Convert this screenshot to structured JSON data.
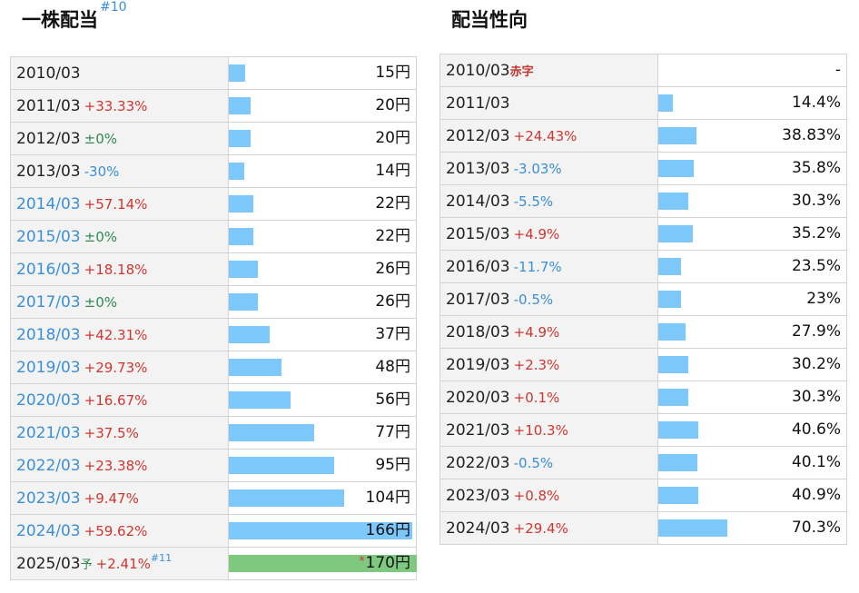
{
  "dividend": {
    "title": "一株配当",
    "title_note": "#10",
    "max_value": 170,
    "rows": [
      {
        "year": "2010/03",
        "change": "",
        "change_type": "",
        "value": 15,
        "value_label": "15円",
        "year_style": "normal"
      },
      {
        "year": "2011/03",
        "change": "+33.33%",
        "change_type": "up",
        "value": 20,
        "value_label": "20円",
        "year_style": "normal"
      },
      {
        "year": "2012/03",
        "change": "±0%",
        "change_type": "flat",
        "value": 20,
        "value_label": "20円",
        "year_style": "normal"
      },
      {
        "year": "2013/03",
        "change": "-30%",
        "change_type": "down",
        "value": 14,
        "value_label": "14円",
        "year_style": "normal"
      },
      {
        "year": "2014/03",
        "change": "+57.14%",
        "change_type": "up",
        "value": 22,
        "value_label": "22円",
        "year_style": "blue"
      },
      {
        "year": "2015/03",
        "change": "±0%",
        "change_type": "flat",
        "value": 22,
        "value_label": "22円",
        "year_style": "blue"
      },
      {
        "year": "2016/03",
        "change": "+18.18%",
        "change_type": "up",
        "value": 26,
        "value_label": "26円",
        "year_style": "blue"
      },
      {
        "year": "2017/03",
        "change": "±0%",
        "change_type": "flat",
        "value": 26,
        "value_label": "26円",
        "year_style": "blue"
      },
      {
        "year": "2018/03",
        "change": "+42.31%",
        "change_type": "up",
        "value": 37,
        "value_label": "37円",
        "year_style": "blue"
      },
      {
        "year": "2019/03",
        "change": "+29.73%",
        "change_type": "up",
        "value": 48,
        "value_label": "48円",
        "year_style": "blue"
      },
      {
        "year": "2020/03",
        "change": "+16.67%",
        "change_type": "up",
        "value": 56,
        "value_label": "56円",
        "year_style": "blue"
      },
      {
        "year": "2021/03",
        "change": "+37.5%",
        "change_type": "up",
        "value": 77,
        "value_label": "77円",
        "year_style": "blue"
      },
      {
        "year": "2022/03",
        "change": "+23.38%",
        "change_type": "up",
        "value": 95,
        "value_label": "95円",
        "year_style": "blue"
      },
      {
        "year": "2023/03",
        "change": "+9.47%",
        "change_type": "up",
        "value": 104,
        "value_label": "104円",
        "year_style": "blue"
      },
      {
        "year": "2024/03",
        "change": "+59.62%",
        "change_type": "up",
        "value": 166,
        "value_label": "166円",
        "year_style": "blue"
      },
      {
        "year": "2025/03",
        "yo": "予",
        "change": "+2.41%",
        "change_type": "up",
        "note": "#11",
        "value": 170,
        "value_label": "170円",
        "star": "*",
        "forecast": true,
        "year_style": "normal"
      }
    ]
  },
  "payout": {
    "title": "配当性向",
    "max_value": 100,
    "rows": [
      {
        "year": "2010/03",
        "tag": "赤字",
        "change": "",
        "change_type": "",
        "value": 0,
        "value_label": "-"
      },
      {
        "year": "2011/03",
        "change": "",
        "change_type": "",
        "value": 14.4,
        "value_label": "14.4%"
      },
      {
        "year": "2012/03",
        "change": "+24.43%",
        "change_type": "up",
        "value": 38.83,
        "value_label": "38.83%"
      },
      {
        "year": "2013/03",
        "change": "-3.03%",
        "change_type": "down",
        "value": 35.8,
        "value_label": "35.8%"
      },
      {
        "year": "2014/03",
        "change": "-5.5%",
        "change_type": "down",
        "value": 30.3,
        "value_label": "30.3%"
      },
      {
        "year": "2015/03",
        "change": "+4.9%",
        "change_type": "up",
        "value": 35.2,
        "value_label": "35.2%"
      },
      {
        "year": "2016/03",
        "change": "-11.7%",
        "change_type": "down",
        "value": 23.5,
        "value_label": "23.5%"
      },
      {
        "year": "2017/03",
        "change": "-0.5%",
        "change_type": "down",
        "value": 23,
        "value_label": "23%"
      },
      {
        "year": "2018/03",
        "change": "+4.9%",
        "change_type": "up",
        "value": 27.9,
        "value_label": "27.9%"
      },
      {
        "year": "2019/03",
        "change": "+2.3%",
        "change_type": "up",
        "value": 30.2,
        "value_label": "30.2%"
      },
      {
        "year": "2020/03",
        "change": "+0.1%",
        "change_type": "up",
        "value": 30.3,
        "value_label": "30.3%"
      },
      {
        "year": "2021/03",
        "change": "+10.3%",
        "change_type": "up",
        "value": 40.6,
        "value_label": "40.6%"
      },
      {
        "year": "2022/03",
        "change": "-0.5%",
        "change_type": "down",
        "value": 40.1,
        "value_label": "40.1%"
      },
      {
        "year": "2023/03",
        "change": "+0.8%",
        "change_type": "up",
        "value": 40.9,
        "value_label": "40.9%"
      },
      {
        "year": "2024/03",
        "change": "+29.4%",
        "change_type": "up",
        "value": 70.3,
        "value_label": "70.3%"
      }
    ]
  },
  "colors": {
    "bar": "#7cc8fb",
    "forecast_bar": "#7fc87f",
    "up": "#d0362f",
    "down": "#3a8fd8",
    "flat": "#2e8a4e"
  }
}
